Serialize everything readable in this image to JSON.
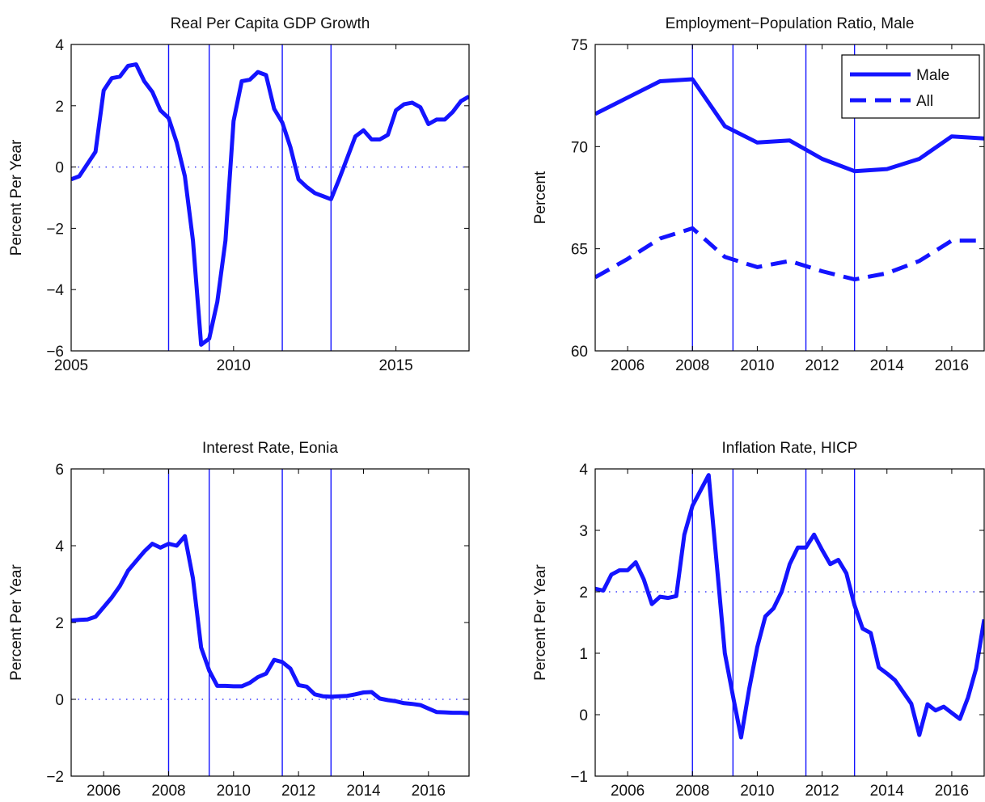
{
  "chart_data": [
    {
      "type": "line",
      "title": "Real Per Capita GDP Growth",
      "ylabel": "Percent Per Year",
      "xlabel": "",
      "xlim": [
        2005,
        2017.25
      ],
      "ylim": [
        -6,
        4
      ],
      "xticks": [
        2005,
        2010,
        2015
      ],
      "xtick_labels": [
        "2005",
        "2010",
        "2015"
      ],
      "yticks": [
        -6,
        -4,
        -2,
        0,
        2,
        4
      ],
      "ytick_labels": [
        "−6",
        "−4",
        "−2",
        "0",
        "2",
        "4"
      ],
      "reference_line": 0,
      "vertical_lines": [
        2008.0,
        2009.25,
        2011.5,
        2013.0
      ],
      "legend": null,
      "series": [
        {
          "name": "",
          "style": "solid",
          "color": "#1414ff",
          "x": [
            2005.0,
            2005.25,
            2005.5,
            2005.75,
            2006.0,
            2006.25,
            2006.5,
            2006.75,
            2007.0,
            2007.25,
            2007.5,
            2007.75,
            2008.0,
            2008.25,
            2008.5,
            2008.75,
            2009.0,
            2009.25,
            2009.5,
            2009.75,
            2010.0,
            2010.25,
            2010.5,
            2010.75,
            2011.0,
            2011.25,
            2011.5,
            2011.75,
            2012.0,
            2012.25,
            2012.5,
            2012.75,
            2013.0,
            2013.25,
            2013.5,
            2013.75,
            2014.0,
            2014.25,
            2014.5,
            2014.75,
            2015.0,
            2015.25,
            2015.5,
            2015.75,
            2016.0,
            2016.25,
            2016.5,
            2016.75,
            2017.0,
            2017.25
          ],
          "y": [
            -0.4,
            -0.3,
            0.1,
            0.5,
            2.5,
            2.9,
            2.95,
            3.3,
            3.35,
            2.8,
            2.45,
            1.85,
            1.6,
            0.8,
            -0.3,
            -2.4,
            -5.8,
            -5.6,
            -4.4,
            -2.4,
            1.5,
            2.8,
            2.85,
            3.1,
            3.0,
            1.9,
            1.45,
            0.65,
            -0.4,
            -0.65,
            -0.85,
            -0.95,
            -1.05,
            -0.4,
            0.3,
            1.0,
            1.2,
            0.9,
            0.9,
            1.05,
            1.85,
            2.05,
            2.1,
            1.95,
            1.4,
            1.55,
            1.55,
            1.8,
            2.15,
            2.3
          ]
        }
      ]
    },
    {
      "type": "line",
      "title": "Employment−Population Ratio, Male",
      "ylabel": "Percent",
      "xlabel": "",
      "xlim": [
        2005,
        2017
      ],
      "ylim": [
        60,
        75
      ],
      "xticks": [
        2006,
        2008,
        2010,
        2012,
        2014,
        2016
      ],
      "xtick_labels": [
        "2006",
        "2008",
        "2010",
        "2012",
        "2014",
        "2016"
      ],
      "yticks": [
        60,
        65,
        70,
        75
      ],
      "ytick_labels": [
        "60",
        "65",
        "70",
        "75"
      ],
      "reference_line": null,
      "vertical_lines": [
        2008.0,
        2009.25,
        2011.5,
        2013.0
      ],
      "legend": {
        "position": "top-right"
      },
      "series": [
        {
          "name": "Male",
          "style": "solid",
          "color": "#1414ff",
          "x": [
            2005,
            2006,
            2007,
            2008,
            2009,
            2010,
            2011,
            2012,
            2013,
            2014,
            2015,
            2016,
            2017
          ],
          "y": [
            71.6,
            72.4,
            73.2,
            73.3,
            71.0,
            70.2,
            70.3,
            69.4,
            68.8,
            68.9,
            69.4,
            70.5,
            70.4
          ]
        },
        {
          "name": "All",
          "style": "dashed",
          "color": "#1414ff",
          "x": [
            2005,
            2006,
            2007,
            2008,
            2009,
            2010,
            2011,
            2012,
            2013,
            2014,
            2015,
            2016,
            2017
          ],
          "y": [
            63.6,
            64.5,
            65.5,
            66.0,
            64.6,
            64.1,
            64.4,
            63.9,
            63.5,
            63.8,
            64.4,
            65.4,
            65.4
          ]
        }
      ]
    },
    {
      "type": "line",
      "title": "Interest Rate, Eonia",
      "ylabel": "Percent Per Year",
      "xlabel": "",
      "xlim": [
        2005,
        2017.25
      ],
      "ylim": [
        -2,
        6
      ],
      "xticks": [
        2006,
        2008,
        2010,
        2012,
        2014,
        2016
      ],
      "xtick_labels": [
        "2006",
        "2008",
        "2010",
        "2012",
        "2014",
        "2016"
      ],
      "yticks": [
        -2,
        0,
        2,
        4,
        6
      ],
      "ytick_labels": [
        "−2",
        "0",
        "2",
        "4",
        "6"
      ],
      "reference_line": 0,
      "vertical_lines": [
        2008.0,
        2009.25,
        2011.5,
        2013.0
      ],
      "legend": null,
      "series": [
        {
          "name": "",
          "style": "solid",
          "color": "#1414ff",
          "x": [
            2005.0,
            2005.25,
            2005.5,
            2005.75,
            2006.0,
            2006.25,
            2006.5,
            2006.75,
            2007.0,
            2007.25,
            2007.5,
            2007.75,
            2008.0,
            2008.25,
            2008.5,
            2008.75,
            2009.0,
            2009.25,
            2009.5,
            2009.75,
            2010.0,
            2010.25,
            2010.5,
            2010.75,
            2011.0,
            2011.25,
            2011.5,
            2011.75,
            2012.0,
            2012.25,
            2012.5,
            2012.75,
            2013.0,
            2013.25,
            2013.5,
            2013.75,
            2014.0,
            2014.25,
            2014.5,
            2014.75,
            2015.0,
            2015.25,
            2015.5,
            2015.75,
            2016.0,
            2016.25,
            2016.5,
            2016.75,
            2017.0,
            2017.25
          ],
          "y": [
            2.05,
            2.07,
            2.08,
            2.15,
            2.4,
            2.65,
            2.95,
            3.35,
            3.6,
            3.85,
            4.05,
            3.95,
            4.05,
            4.0,
            4.25,
            3.15,
            1.35,
            0.75,
            0.35,
            0.35,
            0.34,
            0.34,
            0.43,
            0.58,
            0.67,
            1.03,
            0.97,
            0.8,
            0.37,
            0.33,
            0.13,
            0.08,
            0.07,
            0.08,
            0.09,
            0.13,
            0.18,
            0.19,
            0.02,
            -0.02,
            -0.05,
            -0.1,
            -0.12,
            -0.15,
            -0.24,
            -0.33,
            -0.34,
            -0.35,
            -0.35,
            -0.36
          ]
        }
      ]
    },
    {
      "type": "line",
      "title": "Inflation Rate, HICP",
      "ylabel": "Percent Per Year",
      "xlabel": "",
      "xlim": [
        2005,
        2017
      ],
      "ylim": [
        -1,
        4
      ],
      "xticks": [
        2006,
        2008,
        2010,
        2012,
        2014,
        2016
      ],
      "xtick_labels": [
        "2006",
        "2008",
        "2010",
        "2012",
        "2014",
        "2016"
      ],
      "yticks": [
        -1,
        0,
        1,
        2,
        3,
        4
      ],
      "ytick_labels": [
        "−1",
        "0",
        "1",
        "2",
        "3",
        "4"
      ],
      "reference_line": 2,
      "vertical_lines": [
        2008.0,
        2009.25,
        2011.5,
        2013.0
      ],
      "legend": null,
      "series": [
        {
          "name": "",
          "style": "solid",
          "color": "#1414ff",
          "x": [
            2005.0,
            2005.25,
            2005.5,
            2005.75,
            2006.0,
            2006.25,
            2006.5,
            2006.75,
            2007.0,
            2007.25,
            2007.5,
            2007.75,
            2008.0,
            2008.25,
            2008.5,
            2008.75,
            2009.0,
            2009.25,
            2009.5,
            2009.75,
            2010.0,
            2010.25,
            2010.5,
            2010.75,
            2011.0,
            2011.25,
            2011.5,
            2011.75,
            2012.0,
            2012.25,
            2012.5,
            2012.75,
            2013.0,
            2013.25,
            2013.5,
            2013.75,
            2014.0,
            2014.25,
            2014.5,
            2014.75,
            2015.0,
            2015.25,
            2015.5,
            2015.75,
            2016.0,
            2016.25,
            2016.5,
            2016.75,
            2017.0
          ],
          "y": [
            2.05,
            2.02,
            2.28,
            2.35,
            2.35,
            2.48,
            2.2,
            1.8,
            1.92,
            1.9,
            1.93,
            2.93,
            3.4,
            3.65,
            3.9,
            2.45,
            1.0,
            0.3,
            -0.37,
            0.42,
            1.1,
            1.6,
            1.73,
            2.0,
            2.45,
            2.72,
            2.72,
            2.93,
            2.68,
            2.45,
            2.52,
            2.3,
            1.78,
            1.4,
            1.33,
            0.77,
            0.67,
            0.56,
            0.37,
            0.18,
            -0.33,
            0.17,
            0.07,
            0.13,
            0.03,
            -0.07,
            0.28,
            0.75,
            1.55
          ]
        }
      ]
    }
  ]
}
